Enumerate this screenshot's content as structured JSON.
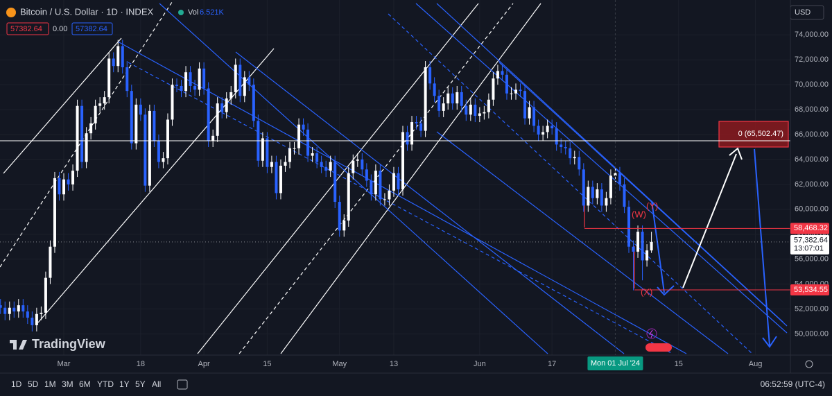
{
  "header": {
    "title": "Bitcoin / U.S. Dollar · 1D · INDEX",
    "volume_label": "Vol",
    "volume": "6.521K",
    "legend": [
      "57382.64",
      "0.00",
      "57382.64"
    ],
    "currency": "USD",
    "logo": "TradingView"
  },
  "chart_data": {
    "type": "candlestick",
    "candles": [
      [
        52300,
        52800,
        51600,
        52100
      ],
      [
        52100,
        52600,
        51100,
        51600
      ],
      [
        51600,
        52600,
        51100,
        52100
      ],
      [
        52100,
        52600,
        51300,
        51800
      ],
      [
        51800,
        52800,
        51300,
        52300
      ],
      [
        52300,
        52800,
        51300,
        51800
      ],
      [
        51800,
        52300,
        50800,
        51300
      ],
      [
        51300,
        51800,
        50200,
        50700
      ],
      [
        50700,
        52100,
        50200,
        51600
      ],
      [
        51600,
        52200,
        51100,
        51700
      ],
      [
        51700,
        55000,
        51200,
        54500
      ],
      [
        54500,
        57500,
        54000,
        57000
      ],
      [
        57000,
        63000,
        56500,
        62500
      ],
      [
        62500,
        63000,
        60700,
        61200
      ],
      [
        61200,
        62900,
        60700,
        62400
      ],
      [
        62400,
        62900,
        61500,
        62000
      ],
      [
        62000,
        63600,
        61500,
        63100
      ],
      [
        63100,
        68800,
        62600,
        68300
      ],
      [
        68300,
        68800,
        63300,
        63800
      ],
      [
        63800,
        66600,
        63300,
        66100
      ],
      [
        66100,
        67400,
        65600,
        66900
      ],
      [
        66900,
        68800,
        66400,
        68300
      ],
      [
        68300,
        69000,
        67800,
        68500
      ],
      [
        68500,
        69500,
        68000,
        69000
      ],
      [
        69000,
        72600,
        68500,
        72100
      ],
      [
        72100,
        72600,
        71000,
        71500
      ],
      [
        71500,
        73600,
        71000,
        73100
      ],
      [
        73100,
        73600,
        70900,
        71400
      ],
      [
        71400,
        71900,
        69000,
        69500
      ],
      [
        69500,
        70000,
        64800,
        65300
      ],
      [
        65300,
        68900,
        64800,
        68400
      ],
      [
        68400,
        68900,
        67100,
        67600
      ],
      [
        67600,
        68100,
        61400,
        61900
      ],
      [
        61900,
        68400,
        61400,
        67900
      ],
      [
        67900,
        68400,
        65000,
        65500
      ],
      [
        65500,
        66000,
        63300,
        63800
      ],
      [
        63800,
        64600,
        63300,
        64100
      ],
      [
        64100,
        67700,
        63600,
        67200
      ],
      [
        67200,
        70500,
        66700,
        70000
      ],
      [
        70000,
        70500,
        69400,
        69900
      ],
      [
        69900,
        70400,
        69000,
        69500
      ],
      [
        69500,
        71500,
        69000,
        71000
      ],
      [
        71000,
        71500,
        69400,
        69900
      ],
      [
        69900,
        70400,
        69100,
        69600
      ],
      [
        69600,
        71800,
        69100,
        71300
      ],
      [
        71300,
        71800,
        69200,
        69700
      ],
      [
        69700,
        70200,
        65000,
        65500
      ],
      [
        65500,
        66400,
        65000,
        65900
      ],
      [
        65900,
        69000,
        65400,
        68500
      ],
      [
        68500,
        69000,
        67300,
        67800
      ],
      [
        67800,
        69400,
        67300,
        68900
      ],
      [
        68900,
        69900,
        68400,
        69400
      ],
      [
        69400,
        72100,
        68900,
        71600
      ],
      [
        71600,
        72100,
        68600,
        69100
      ],
      [
        69100,
        71100,
        68600,
        70600
      ],
      [
        70600,
        71100,
        69500,
        70000
      ],
      [
        70000,
        70500,
        66600,
        67100
      ],
      [
        67100,
        67600,
        63400,
        63900
      ],
      [
        63900,
        66200,
        63400,
        65700
      ],
      [
        65700,
        66200,
        62900,
        63400
      ],
      [
        63400,
        64300,
        62900,
        63800
      ],
      [
        63800,
        64300,
        60800,
        61300
      ],
      [
        61300,
        64000,
        60800,
        63500
      ],
      [
        63500,
        64300,
        63000,
        63800
      ],
      [
        63800,
        65400,
        63300,
        64900
      ],
      [
        64900,
        65400,
        64400,
        64900
      ],
      [
        64900,
        67300,
        64400,
        66800
      ],
      [
        66800,
        67300,
        65900,
        66400
      ],
      [
        66400,
        66900,
        63800,
        64300
      ],
      [
        64300,
        65000,
        63800,
        64500
      ],
      [
        64500,
        65000,
        63300,
        63800
      ],
      [
        63800,
        64300,
        62900,
        63400
      ],
      [
        63400,
        63900,
        62600,
        63100
      ],
      [
        63100,
        64300,
        62600,
        63800
      ],
      [
        63800,
        64300,
        60100,
        60600
      ],
      [
        60600,
        61100,
        57800,
        58300
      ],
      [
        58300,
        59600,
        57800,
        59100
      ],
      [
        59100,
        63400,
        58600,
        62900
      ],
      [
        62900,
        64400,
        62400,
        63900
      ],
      [
        63900,
        64500,
        63400,
        64000
      ],
      [
        64000,
        64500,
        62700,
        63200
      ],
      [
        63200,
        63700,
        61800,
        62300
      ],
      [
        62300,
        62800,
        60700,
        61200
      ],
      [
        61200,
        63600,
        60700,
        63100
      ],
      [
        63100,
        63600,
        60300,
        60800
      ],
      [
        60800,
        61300,
        60300,
        60800
      ],
      [
        60800,
        62000,
        60300,
        61500
      ],
      [
        61500,
        63400,
        61000,
        62900
      ],
      [
        62900,
        63400,
        61100,
        61600
      ],
      [
        61600,
        66700,
        61100,
        66200
      ],
      [
        66200,
        66700,
        64700,
        65200
      ],
      [
        65200,
        67500,
        64700,
        67000
      ],
      [
        67000,
        67500,
        66400,
        66900
      ],
      [
        66900,
        67400,
        65800,
        66300
      ],
      [
        66300,
        71900,
        65800,
        71400
      ],
      [
        71400,
        71900,
        69600,
        70100
      ],
      [
        70100,
        70600,
        68600,
        69100
      ],
      [
        69100,
        69600,
        67400,
        67900
      ],
      [
        67900,
        69000,
        67400,
        68500
      ],
      [
        68500,
        69800,
        68000,
        69300
      ],
      [
        69300,
        69800,
        68000,
        68500
      ],
      [
        68500,
        69900,
        68000,
        69400
      ],
      [
        69400,
        69900,
        67800,
        68300
      ],
      [
        68300,
        68800,
        67100,
        67600
      ],
      [
        67600,
        68900,
        67100,
        68400
      ],
      [
        68400,
        68900,
        67000,
        67500
      ],
      [
        67500,
        68200,
        67000,
        67700
      ],
      [
        67700,
        68300,
        67200,
        67800
      ],
      [
        67800,
        69300,
        67300,
        68800
      ],
      [
        68800,
        71000,
        68300,
        70500
      ],
      [
        70500,
        71600,
        70000,
        71100
      ],
      [
        71100,
        71600,
        70300,
        70800
      ],
      [
        70800,
        71300,
        68800,
        69300
      ],
      [
        69300,
        69800,
        68800,
        69300
      ],
      [
        69300,
        70100,
        68800,
        69600
      ],
      [
        69600,
        70100,
        69000,
        69500
      ],
      [
        69500,
        70000,
        66800,
        67300
      ],
      [
        67300,
        68700,
        66800,
        68200
      ],
      [
        68200,
        68700,
        66200,
        66700
      ],
      [
        66700,
        67200,
        65500,
        66000
      ],
      [
        66000,
        66700,
        65500,
        66200
      ],
      [
        66200,
        67200,
        65700,
        66700
      ],
      [
        66700,
        67200,
        66000,
        66500
      ],
      [
        66500,
        67000,
        64700,
        65200
      ],
      [
        65200,
        65700,
        64500,
        65000
      ],
      [
        65000,
        65500,
        64400,
        64900
      ],
      [
        64900,
        65400,
        63600,
        64100
      ],
      [
        64100,
        64700,
        63600,
        64200
      ],
      [
        64200,
        64700,
        62700,
        63200
      ],
      [
        63200,
        63700,
        59800,
        60300
      ],
      [
        60300,
        62300,
        59800,
        61800
      ],
      [
        61800,
        62300,
        60400,
        60900
      ],
      [
        60900,
        62100,
        60400,
        61600
      ],
      [
        61600,
        62100,
        59800,
        60300
      ],
      [
        60300,
        61400,
        59800,
        60900
      ],
      [
        60900,
        63200,
        60400,
        62700
      ],
      [
        62700,
        63400,
        62200,
        62900
      ],
      [
        62900,
        63400,
        61500,
        62000
      ],
      [
        62000,
        62500,
        59700,
        60200
      ],
      [
        60200,
        60700,
        56500,
        57000
      ],
      [
        57000,
        57500,
        53500,
        56600
      ],
      [
        56600,
        58700,
        56100,
        58200
      ],
      [
        58200,
        58700,
        54300,
        55900
      ],
      [
        55900,
        57200,
        55400,
        56700
      ],
      [
        56700,
        58200,
        56500,
        57382.64
      ]
    ],
    "up_color": "#ffffff",
    "down_color": "#2962ff",
    "ylim": [
      48300,
      76800
    ],
    "yticks": [
      {
        "value": 74000,
        "label": "74,000.00"
      },
      {
        "value": 72000,
        "label": "72,000.00"
      },
      {
        "value": 70000,
        "label": "70,000.00"
      },
      {
        "value": 68000,
        "label": "68,000.00"
      },
      {
        "value": 66000,
        "label": "66,000.00"
      },
      {
        "value": 64000,
        "label": "64,000.00"
      },
      {
        "value": 62000,
        "label": "62,000.00"
      },
      {
        "value": 60000,
        "label": "60,000.00"
      },
      {
        "value": 58000,
        "label": "58,000.00"
      },
      {
        "value": 56000,
        "label": "56,000.00"
      },
      {
        "value": 54000,
        "label": "54,000.00"
      },
      {
        "value": 52000,
        "label": "52,000.00"
      },
      {
        "value": 50000,
        "label": "50,000.00"
      }
    ],
    "xticks": [
      {
        "value": 14,
        "label": "Mar"
      },
      {
        "value": 31,
        "label": "18"
      },
      {
        "value": 45,
        "label": "Apr"
      },
      {
        "value": 59,
        "label": "15"
      },
      {
        "value": 75,
        "label": "May"
      },
      {
        "value": 87,
        "label": "13"
      },
      {
        "value": 106,
        "label": "Jun"
      },
      {
        "value": 122,
        "label": "17"
      },
      {
        "value": 150,
        "label": "15"
      },
      {
        "value": 167,
        "label": "Aug"
      }
    ],
    "crosshair_date": {
      "value": 136,
      "label": "Mon 01 Jul '24"
    },
    "last_price": {
      "value": 57382.64,
      "label": "57,382.64",
      "countdown": "13:07:01"
    },
    "levels": [
      {
        "value": 58468.32,
        "label": "58,468.32"
      },
      {
        "value": 53534.55,
        "label": "53,534.55"
      }
    ],
    "target": {
      "value": 65502.47,
      "label": "0 (65,502.47)"
    },
    "annotations": [
      "(W)",
      "(Y)",
      "(X)"
    ]
  },
  "toolbar": {
    "ranges": [
      "1D",
      "5D",
      "1M",
      "3M",
      "6M",
      "YTD",
      "1Y",
      "5Y",
      "All"
    ],
    "clock": "06:52:59 (UTC-4)"
  }
}
